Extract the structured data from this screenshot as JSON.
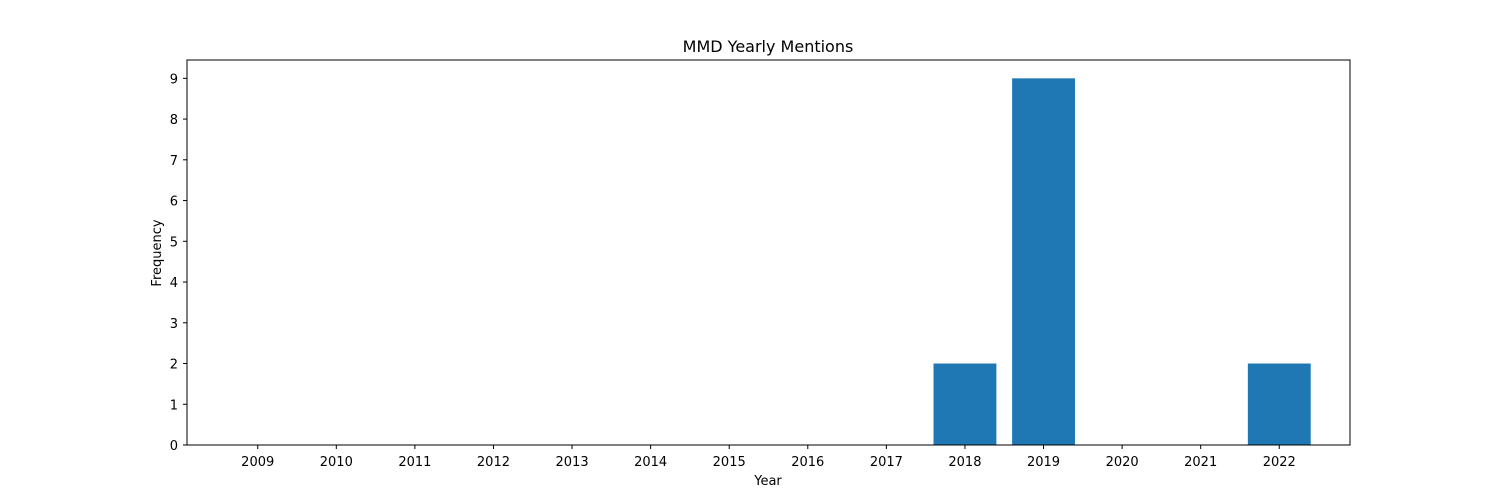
{
  "chart_data": {
    "type": "bar",
    "title": "MMD Yearly Mentions",
    "xlabel": "Year",
    "ylabel": "Frequency",
    "categories": [
      2009,
      2010,
      2011,
      2012,
      2013,
      2014,
      2015,
      2016,
      2017,
      2018,
      2019,
      2020,
      2021,
      2022
    ],
    "values": [
      0,
      0,
      0,
      0,
      0,
      0,
      0,
      0,
      0,
      2,
      9,
      0,
      0,
      2
    ],
    "ylim": [
      0,
      9.45
    ],
    "yticks": [
      0,
      1,
      2,
      3,
      4,
      5,
      6,
      7,
      8,
      9
    ],
    "bar_color": "#1f77b4",
    "grid": false,
    "legend": "none"
  }
}
